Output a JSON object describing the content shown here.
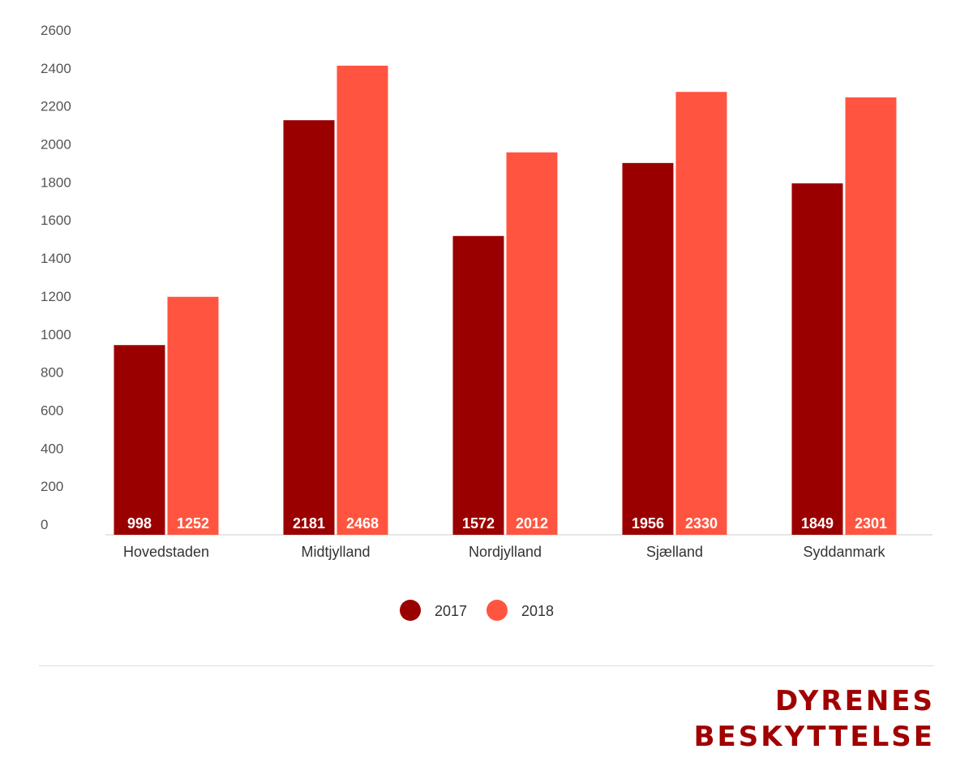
{
  "chart_data": {
    "type": "bar",
    "categories": [
      "Hovedstaden",
      "Midtjylland",
      "Nordjylland",
      "Sjælland",
      "Syddanmark"
    ],
    "series": [
      {
        "name": "2017",
        "values": [
          998,
          2181,
          1572,
          1956,
          1849
        ]
      },
      {
        "name": "2018",
        "values": [
          1252,
          2468,
          2012,
          2330,
          2301
        ]
      }
    ],
    "yticks": [
      0,
      200,
      400,
      600,
      800,
      1000,
      1200,
      1400,
      1600,
      1800,
      2000,
      2200,
      2400,
      2600
    ],
    "ylim": [
      0,
      2600
    ],
    "grid": false,
    "legend_position": "bottom",
    "data_labels": "inside-base"
  },
  "colors": {
    "series_2017": "#9b0000",
    "series_2018": "#ff5540",
    "brand": "#a00000"
  },
  "brand": {
    "line1": "DYRENES",
    "line2": "BESKYTTELSE"
  }
}
